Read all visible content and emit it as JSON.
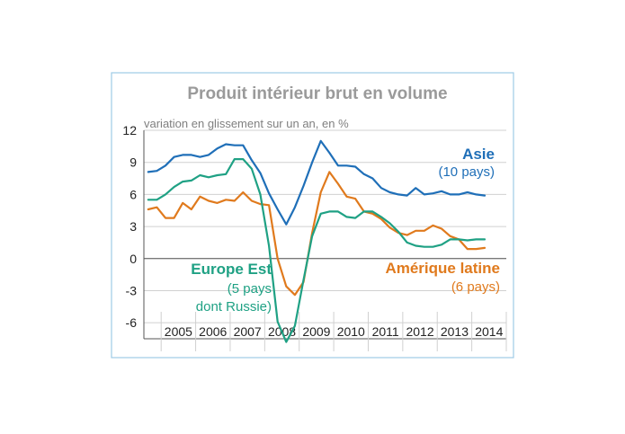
{
  "colors": {
    "asie": "#1f6fb8",
    "europe_est": "#1fa184",
    "amerique_latine": "#e07a1d",
    "frame": "#9ecbe6",
    "grid": "#d0d0d0",
    "axis": "#555555",
    "title": "#9a9a9a"
  },
  "chart_data": {
    "type": "line",
    "title": "Produit intérieur brut en volume",
    "subtitle": "variation en glissement sur un an, en %",
    "xlabel": "",
    "ylabel": "",
    "xlim": [
      2004.5,
      2015.0
    ],
    "ylim": [
      -7.5,
      12
    ],
    "yticks": [
      12,
      9,
      6,
      3,
      0,
      -3,
      -6
    ],
    "ytick_labels": [
      "12",
      "9",
      "6",
      "3",
      "0",
      "-3",
      "-6"
    ],
    "xtick_labels": [
      "2005",
      "2006",
      "2007",
      "2008",
      "2009",
      "2010",
      "2011",
      "2012",
      "2013",
      "2014"
    ],
    "grid": true,
    "x": [
      2004.625,
      2004.875,
      2005.125,
      2005.375,
      2005.625,
      2005.875,
      2006.125,
      2006.375,
      2006.625,
      2006.875,
      2007.125,
      2007.375,
      2007.625,
      2007.875,
      2008.125,
      2008.375,
      2008.625,
      2008.875,
      2009.125,
      2009.375,
      2009.625,
      2009.875,
      2010.125,
      2010.375,
      2010.625,
      2010.875,
      2011.125,
      2011.375,
      2011.625,
      2011.875,
      2012.125,
      2012.375,
      2012.625,
      2012.875,
      2013.125,
      2013.375,
      2013.625,
      2013.875,
      2014.125,
      2014.375
    ],
    "series": [
      {
        "name": "Asie (10 pays)",
        "label_main": "Asie",
        "label_sub": "(10 pays)",
        "values": [
          8.1,
          8.2,
          8.7,
          9.5,
          9.7,
          9.7,
          9.5,
          9.7,
          10.3,
          10.7,
          10.6,
          10.6,
          9.2,
          8.0,
          6.1,
          4.6,
          3.2,
          4.8,
          6.8,
          9.0,
          11.0,
          9.9,
          8.7,
          8.7,
          8.6,
          7.9,
          7.5,
          6.6,
          6.2,
          6.0,
          5.9,
          6.6,
          6.0,
          6.1,
          6.3,
          6.0,
          6.0,
          6.2,
          6.0,
          5.9
        ],
        "color_key": "asie"
      },
      {
        "name": "Amérique latine (6 pays)",
        "label_main": "Amérique latine",
        "label_sub": "(6 pays)",
        "values": [
          4.6,
          4.8,
          3.8,
          3.8,
          5.2,
          4.6,
          5.8,
          5.4,
          5.2,
          5.5,
          5.4,
          6.2,
          5.4,
          5.1,
          5.0,
          0.0,
          -2.6,
          -3.4,
          -2.2,
          2.4,
          6.2,
          8.1,
          7.0,
          5.8,
          5.6,
          4.4,
          4.2,
          3.7,
          2.9,
          2.4,
          2.2,
          2.6,
          2.6,
          3.1,
          2.8,
          2.1,
          1.8,
          0.9,
          0.9,
          1.0
        ],
        "color_key": "amerique_latine"
      },
      {
        "name": "Europe Est (5 pays dont Russie)",
        "label_main": "Europe Est",
        "label_sub": "(5 pays",
        "label_sub2": "dont Russie)",
        "values": [
          5.5,
          5.5,
          6.0,
          6.7,
          7.2,
          7.3,
          7.8,
          7.6,
          7.8,
          7.9,
          9.3,
          9.3,
          8.4,
          6.0,
          1.2,
          -5.9,
          -7.8,
          -6.3,
          -2.0,
          2.1,
          4.2,
          4.4,
          4.4,
          3.9,
          3.8,
          4.4,
          4.4,
          3.9,
          3.3,
          2.5,
          1.5,
          1.2,
          1.1,
          1.1,
          1.3,
          1.8,
          1.8,
          1.7,
          1.8,
          1.8
        ],
        "color_key": "europe_est"
      }
    ]
  }
}
